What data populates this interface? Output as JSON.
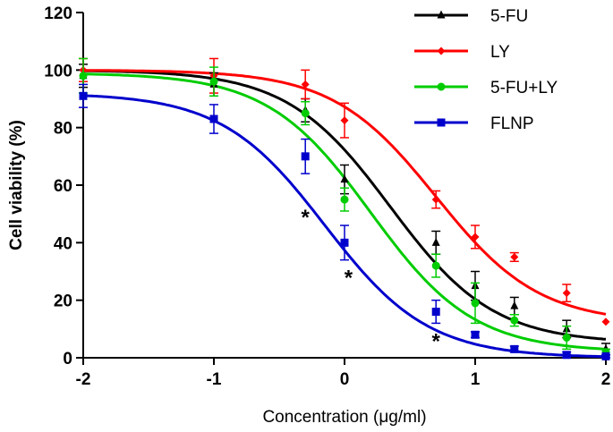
{
  "chart_data": {
    "type": "line",
    "title": "",
    "xlabel": "Concentration (μg/ml)",
    "ylabel": "Cell viability (%)",
    "xlim": [
      -2,
      2
    ],
    "ylim": [
      0,
      120
    ],
    "xticks": [
      -2,
      -1,
      0,
      1,
      2
    ],
    "yticks": [
      0,
      20,
      40,
      60,
      80,
      100,
      120
    ],
    "grid": false,
    "legend_position": "top-right",
    "x": [
      -2,
      -1,
      -0.3,
      0,
      0.7,
      1,
      1.3,
      1.7,
      2
    ],
    "series": [
      {
        "name": "5-FU",
        "color": "#000000",
        "marker": "triangle",
        "values": [
          98,
          95,
          86,
          62,
          40,
          25,
          18,
          10,
          3
        ],
        "errors": [
          4,
          4,
          4,
          5,
          4,
          5,
          3,
          3,
          2
        ],
        "fit": {
          "top": 100,
          "bottom": 5,
          "logIC50": 0.35,
          "hill": 1.1
        }
      },
      {
        "name": "LY",
        "color": "#ff0000",
        "marker": "diamond",
        "values": [
          100,
          98,
          95,
          82.5,
          55,
          42,
          35,
          22.5,
          12.5
        ],
        "errors": [
          4,
          6,
          5,
          6,
          3,
          4,
          1.5,
          3,
          0
        ],
        "fit": {
          "top": 100,
          "bottom": 12,
          "logIC50": 0.7,
          "hill": 1.1
        }
      },
      {
        "name": "5-FU+LY",
        "color": "#00cc00",
        "marker": "circle",
        "values": [
          98,
          96,
          85,
          55,
          32,
          19,
          13,
          7,
          2
        ],
        "errors": [
          6,
          5,
          4,
          4,
          4,
          7,
          2,
          4,
          1
        ],
        "fit": {
          "top": 99,
          "bottom": 2,
          "logIC50": 0.2,
          "hill": 1.1
        }
      },
      {
        "name": "FLNP",
        "color": "#0000cc",
        "marker": "square",
        "values": [
          91,
          83,
          70,
          40,
          16,
          8,
          3,
          1,
          0.5
        ],
        "errors": [
          4,
          5,
          6,
          6,
          4,
          1,
          1,
          1,
          0.5
        ],
        "fit": {
          "top": 92,
          "bottom": 0,
          "logIC50": -0.15,
          "hill": 1.1
        }
      }
    ],
    "annotations": [
      {
        "text": "*",
        "x": -0.3,
        "y": 50
      },
      {
        "text": "*",
        "x": 0.03,
        "y": 29
      },
      {
        "text": "*",
        "x": 0.7,
        "y": 7
      }
    ]
  }
}
